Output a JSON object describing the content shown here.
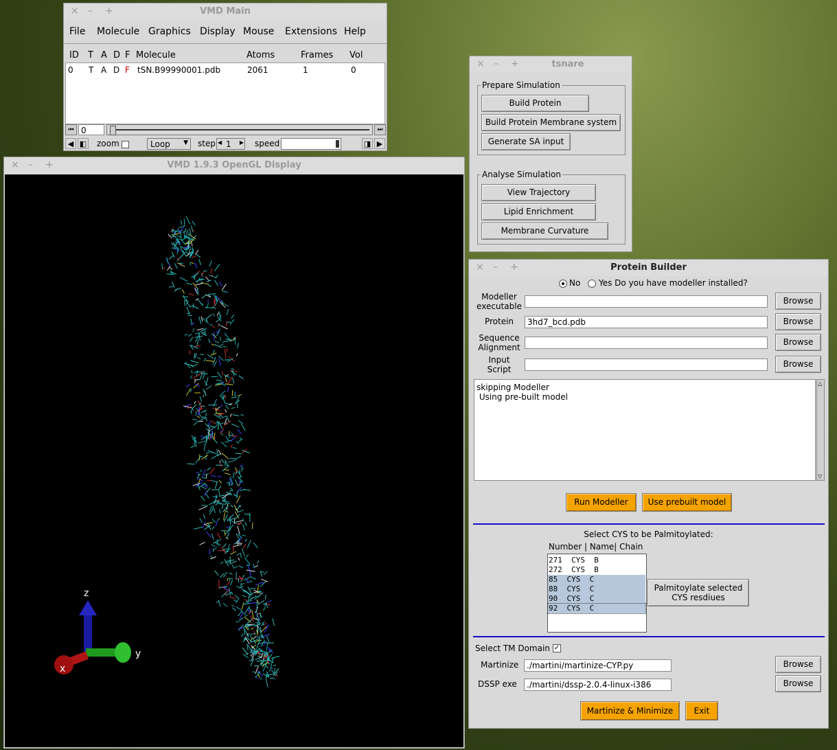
{
  "vmd_main": {
    "title": "VMD Main",
    "window_buttons": [
      "×",
      "–",
      "+"
    ],
    "menu": [
      "File",
      "Molecule",
      "Graphics",
      "Display",
      "Mouse",
      "Extensions",
      "Help"
    ],
    "columns": [
      "ID",
      "T",
      "A",
      "D",
      "F",
      "Molecule",
      "Atoms",
      "Frames",
      "Vol"
    ],
    "row": {
      "id": "0",
      "t": "T",
      "a": "A",
      "d": "D",
      "f": "F",
      "molecule": "tSN.B99990001.pdb",
      "atoms": "2061",
      "frames": "1",
      "vol": "0"
    },
    "frame_value": "0",
    "zoom_label": "zoom",
    "loop_select": "Loop",
    "step_label": "step",
    "step_value": "1",
    "speed_label": "speed"
  },
  "display": {
    "title": "VMD 1.9.3 OpenGL Display",
    "axis_labels": {
      "x": "x",
      "y": "y",
      "z": "z"
    }
  },
  "tsnare": {
    "title": "tsnare",
    "prepare_label": "Prepare Simulation",
    "build_protein": "Build Protein",
    "build_membrane": "Build Protein Membrane system",
    "generate_sa": "Generate SA input",
    "analyse_label": "Analyse Simulation",
    "view_trajectory": "View Trajectory",
    "lipid_enrichment": "Lipid Enrichment",
    "membrane_curvature": "Membrane Curvature"
  },
  "builder": {
    "title": "Protein Builder",
    "radio_no": "No",
    "radio_yes": "Yes Do you have modeller installed?",
    "modeller_label_1": "Modeller",
    "modeller_label_2": "executable",
    "protein_label": "Protein",
    "protein_value": "3hd7_bcd.pdb",
    "seq_label_1": "Sequence",
    "seq_label_2": "Alignment",
    "input_label_1": "Input",
    "input_label_2": "Script",
    "browse": "Browse",
    "log_line_1": "skipping Modeller",
    "log_line_2": " Using pre-built model",
    "run_modeller": "Run Modeller",
    "use_prebuilt": "Use prebuilt model",
    "cys_title": "Select CYS to be Palmitoylated:",
    "cys_header": "Number | Name| Chain",
    "cys_items": [
      "271  CYS  B",
      "272  CYS  B",
      "85  CYS  C",
      "88  CYS  C",
      "90  CYS  C",
      "92  CYS  C"
    ],
    "palm_btn_1": "Palmitoylate selected",
    "palm_btn_2": "CYS resdiues",
    "tm_label": "Select TM Domain",
    "tm_check": "✓",
    "martinize_label": "Martinize",
    "martinize_value": "./martini/martinize-CYP.py",
    "dssp_label": "DSSP exe",
    "dssp_value": "./martini/dssp-2.0.4-linux-i386",
    "martinize_btn": "Martinize & Minimize",
    "exit_btn": "Exit"
  },
  "colors": {
    "orange_button": "#f5a300",
    "separator": "#1010c8",
    "selection": "#b8c8dc",
    "display_bg": "#000000"
  }
}
